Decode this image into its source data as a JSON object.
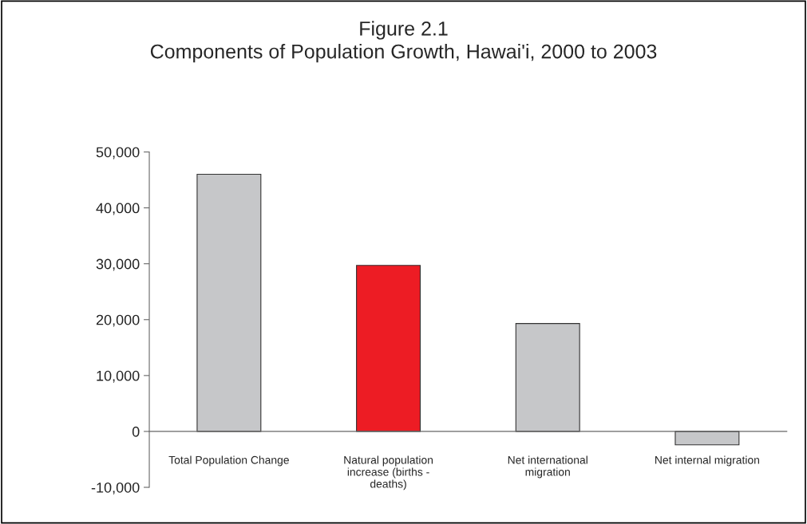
{
  "chart_data": {
    "type": "bar",
    "title": "Figure 2.1\nComponents of Population Growth, Hawai'i, 2000 to 2003",
    "categories": [
      "Total Population Change",
      "Natural population increase (births - deaths)",
      "Net international migration",
      "Net internal migration"
    ],
    "values": [
      46000,
      29700,
      19300,
      -2400
    ],
    "colors": [
      "#c6c7c9",
      "#ed1c24",
      "#c6c7c9",
      "#c6c7c9"
    ],
    "ylim": [
      -10000,
      50000
    ],
    "yticks": [
      {
        "value": -10000,
        "label": "-10,000"
      },
      0,
      {
        "value": 10000,
        "label": "10,000"
      },
      {
        "value": 20000,
        "label": "20,000"
      },
      {
        "value": 30000,
        "label": "30,000"
      },
      {
        "value": 40000,
        "label": "40,000"
      },
      {
        "value": 50000,
        "label": "50,000"
      }
    ],
    "grid": false
  }
}
